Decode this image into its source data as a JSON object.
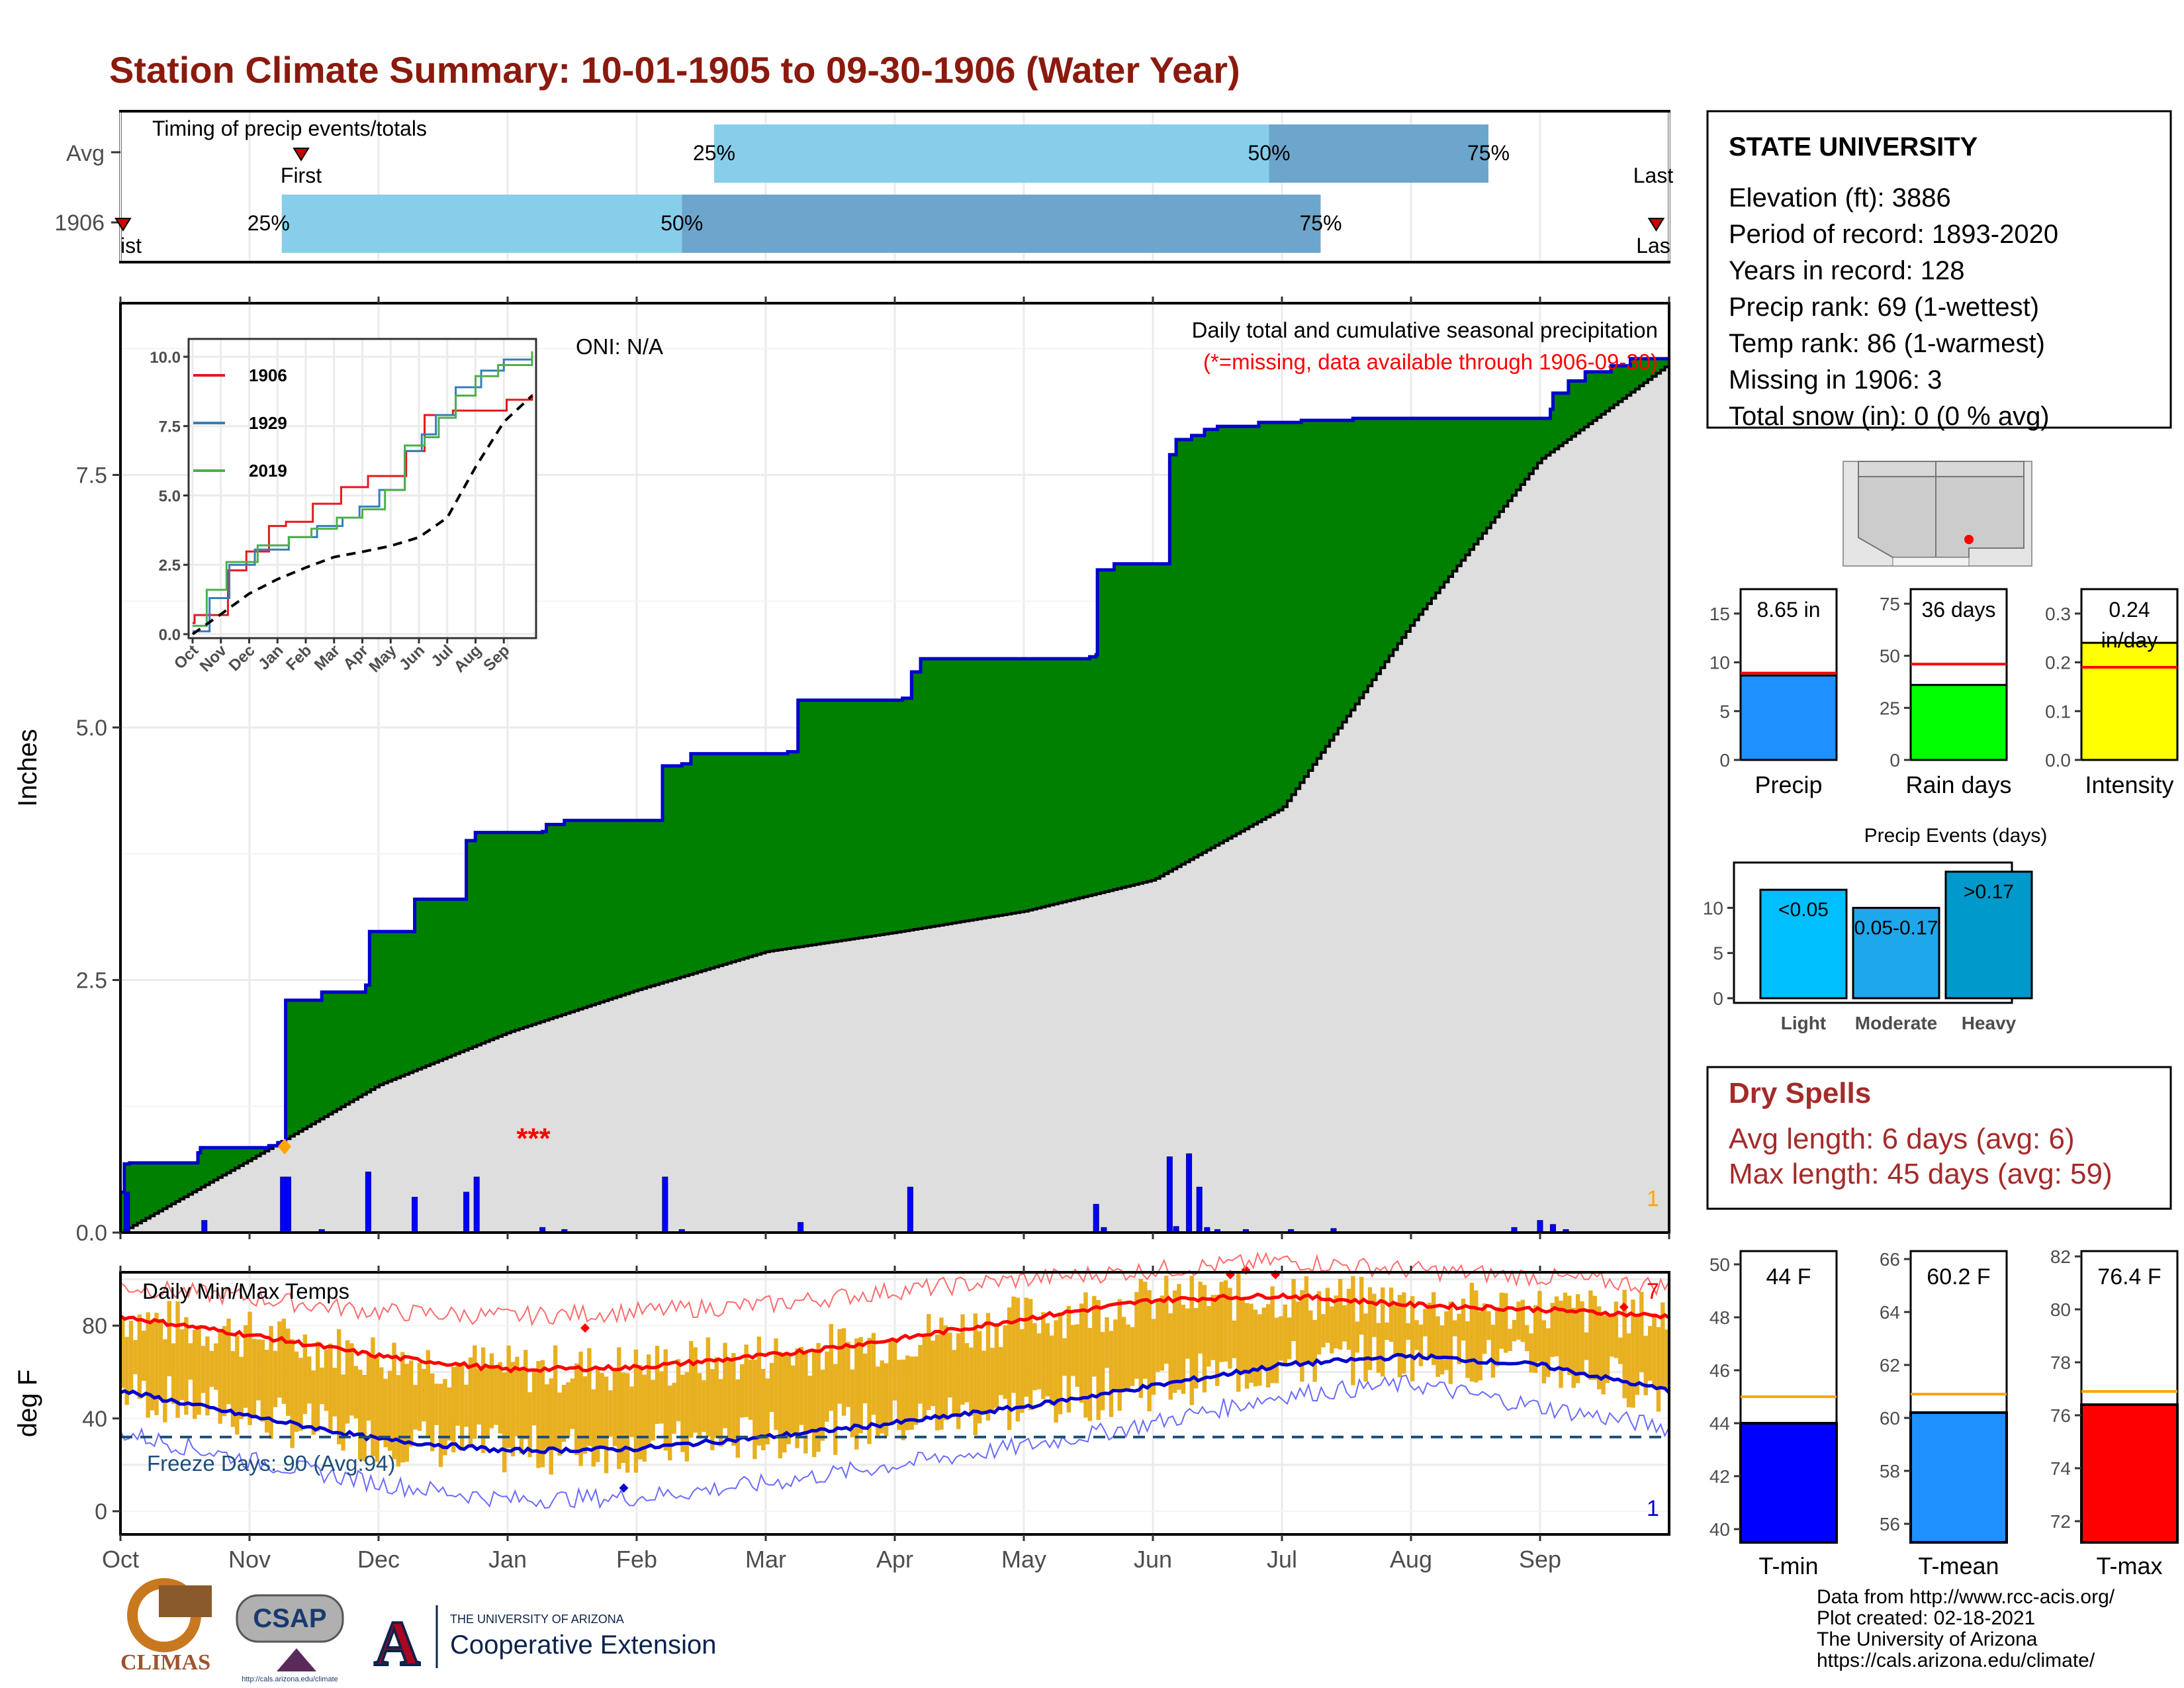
{
  "title": "Station Climate Summary: 10-01-1905 to 09-30-1906 (Water Year)",
  "colors": {
    "title": "#8b1a0e",
    "precip_green": "#008000",
    "precip_outline": "#0000cd",
    "avg_gray": "#dedede",
    "bar_light_blue": "#87ceeb",
    "bar_mid_blue": "#6ca6cd",
    "temp_band": "#e8b020",
    "tmax_line": "#ff0000",
    "tmin_line": "#0000cd",
    "dry_spells": "#a52a2a"
  },
  "timing": {
    "label": "Timing of precip events/totals",
    "rows": [
      {
        "name": "Avg",
        "first": "First",
        "last": "Last",
        "p25": "25%",
        "p50": "50%",
        "p75": "75%",
        "first_month": 1.4,
        "p25_month": 4.6,
        "p50_month": 8.9,
        "p75_month": 10.6,
        "last_month": 12.4
      },
      {
        "name": "1906",
        "first": "ist",
        "last": "Las",
        "p25": "25%",
        "p50": "50%",
        "p75": "75%",
        "first_month": 0.02,
        "p25_month": 1.25,
        "p50_month": 4.35,
        "p75_month": 9.3,
        "last_month": 11.9
      }
    ]
  },
  "precip": {
    "ylabel": "Inches",
    "title": "Daily total and cumulative seasonal precipitation",
    "subtitle": "(*=missing, data available through 1906-09-30)",
    "oni": "ONI: N/A",
    "yticks": [
      "0.0",
      "2.5",
      "5.0",
      "7.5"
    ],
    "corner_label": "1",
    "missing_marker": "*"
  },
  "inset": {
    "yticks": [
      "0.0",
      "2.5",
      "5.0",
      "7.5",
      "10.0"
    ],
    "xticks": [
      "Oct",
      "Nov",
      "Dec",
      "Jan",
      "Feb",
      "Mar",
      "Apr",
      "May",
      "Jun",
      "Jul",
      "Aug",
      "Sep"
    ],
    "legend": [
      {
        "name": "1906",
        "color": "#e41a1c"
      },
      {
        "name": "1929",
        "color": "#377eb8"
      },
      {
        "name": "2019",
        "color": "#4daf4a"
      }
    ]
  },
  "temps": {
    "ylabel": "deg F",
    "label": "Daily Min/Max Temps",
    "freeze_days": "Freeze Days: 90 (Avg:94)",
    "yticks": [
      "0",
      "40",
      "80"
    ],
    "corner_top": "7",
    "corner_bottom": "1"
  },
  "months": [
    "Oct",
    "Nov",
    "Dec",
    "Jan",
    "Feb",
    "Mar",
    "Apr",
    "May",
    "Jun",
    "Jul",
    "Aug",
    "Sep"
  ],
  "station": {
    "name": "STATE UNIVERSITY",
    "lines": [
      "Elevation (ft): 3886",
      "Period of record: 1893-2020",
      "Years in record: 128",
      "Precip rank: 69 (1-wettest)",
      "Temp rank: 86 (1-warmest)",
      "Missing in 1906: 3",
      "Total snow (in): 0 (0 % avg)"
    ]
  },
  "mini_bars": [
    {
      "label": "Precip",
      "value_text": "8.65 in",
      "value": 8.65,
      "avg": 8.9,
      "max": 17.5,
      "ticks": [
        "0",
        "5",
        "10",
        "15"
      ],
      "tick_vals": [
        0,
        5,
        10,
        15
      ],
      "color": "#1e90ff"
    },
    {
      "label": "Rain days",
      "value_text": "36 days",
      "value": 36,
      "avg": 46,
      "max": 82,
      "ticks": [
        "0",
        "25",
        "50",
        "75"
      ],
      "tick_vals": [
        0,
        25,
        50,
        75
      ],
      "color": "#00ff00"
    },
    {
      "label": "Intensity",
      "value_text": "0.24 in/day",
      "value": 0.24,
      "avg": 0.19,
      "max": 0.35,
      "ticks": [
        "0.0",
        "0.1",
        "0.2",
        "0.3"
      ],
      "tick_vals": [
        0,
        0.1,
        0.2,
        0.3
      ],
      "color": "#ffff00"
    }
  ],
  "events": {
    "title": "Precip Events (days)",
    "yticks": [
      "0",
      "5",
      "10"
    ],
    "bars": [
      {
        "label": "Light",
        "inner": "<0.05",
        "value": 12,
        "color": "#00bfff"
      },
      {
        "label": "Moderate",
        "inner": "0.05-0.17",
        "value": 10,
        "color": "#1ea7ea"
      },
      {
        "label": "Heavy",
        "inner": ">0.17",
        "value": 14,
        "color": "#0099cc"
      }
    ],
    "max": 14.5
  },
  "dry_spells": {
    "title": "Dry Spells",
    "avg": "Avg length: 6 days (avg: 6)",
    "max": "Max length: 45 days (avg: 59)"
  },
  "temp_bars": [
    {
      "label": "T-min",
      "value_text": "44 F",
      "value": 44.0,
      "avg": 45.0,
      "lo": 39.5,
      "hi": 50.5,
      "ticks": [
        "40",
        "42",
        "44",
        "46",
        "48",
        "50"
      ],
      "tick_vals": [
        40,
        42,
        44,
        46,
        48,
        50
      ],
      "color": "#0000ff"
    },
    {
      "label": "T-mean",
      "value_text": "60.2 F",
      "value": 60.2,
      "avg": 60.9,
      "lo": 55.3,
      "hi": 66.3,
      "ticks": [
        "56",
        "58",
        "60",
        "62",
        "64",
        "66"
      ],
      "tick_vals": [
        56,
        58,
        60,
        62,
        64,
        66
      ],
      "color": "#1e90ff"
    },
    {
      "label": "T-max",
      "value_text": "76.4 F",
      "value": 76.4,
      "avg": 76.9,
      "lo": 71.2,
      "hi": 82.2,
      "ticks": [
        "72",
        "74",
        "76",
        "78",
        "80",
        "82"
      ],
      "tick_vals": [
        72,
        74,
        76,
        78,
        80,
        82
      ],
      "color": "#ff0000"
    }
  ],
  "footer": [
    "Data from http://www.rcc-acis.org/",
    "Plot created: 02-18-2021",
    "The University of Arizona",
    "https://cals.arizona.edu/climate/"
  ],
  "logos": {
    "climas": "CLIMAS",
    "csap": "CSAP",
    "csap_url": "http://cals.arizona.edu/climate",
    "ua_small": "THE UNIVERSITY OF ARIZONA",
    "ua_ext": "Cooperative Extension"
  },
  "chart_data": [
    {
      "type": "area",
      "title": "Daily total and cumulative seasonal precipitation",
      "ylabel": "Inches",
      "ylim": [
        0,
        9.2
      ],
      "x_unit": "month index from Oct 1 (0-12)",
      "observed_cumulative": {
        "x": [
          0,
          0.03,
          0.07,
          0.6,
          0.62,
          1.15,
          1.22,
          1.28,
          1.56,
          1.9,
          1.93,
          2.28,
          2.68,
          2.75,
          3.27,
          3.3,
          3.44,
          4.2,
          4.35,
          4.42,
          5.17,
          5.25,
          6.06,
          6.13,
          6.2,
          7.51,
          7.56,
          7.57,
          7.7,
          8.13,
          8.18,
          8.3,
          8.4,
          8.5,
          8.82,
          9.15,
          9.55,
          11.08,
          11.1,
          11.22,
          11.35,
          11.55,
          11.7,
          12
        ],
        "y": [
          0.4,
          0.68,
          0.69,
          0.79,
          0.84,
          0.86,
          0.89,
          2.3,
          2.38,
          2.45,
          2.98,
          3.3,
          3.88,
          3.96,
          3.97,
          4.04,
          4.08,
          4.62,
          4.64,
          4.74,
          4.76,
          5.27,
          5.29,
          5.55,
          5.68,
          5.7,
          5.72,
          6.56,
          6.62,
          7.7,
          7.85,
          7.89,
          7.95,
          7.98,
          8.02,
          8.04,
          8.06,
          8.15,
          8.31,
          8.43,
          8.52,
          8.58,
          8.65,
          8.65
        ]
      },
      "average_cumulative": {
        "x": [
          0,
          1,
          2,
          3,
          4,
          5,
          6,
          7,
          8,
          9,
          10,
          11,
          12
        ],
        "y": [
          0,
          0.72,
          1.46,
          1.98,
          2.4,
          2.78,
          2.97,
          3.18,
          3.49,
          4.2,
          6.02,
          7.65,
          8.6
        ]
      },
      "daily_bars": {
        "x": [
          0.05,
          0.65,
          1.26,
          1.3,
          1.56,
          1.92,
          2.28,
          2.68,
          2.76,
          3.27,
          3.44,
          4.22,
          4.35,
          5.27,
          6.12,
          7.56,
          7.62,
          8.13,
          8.18,
          8.28,
          8.36,
          8.42,
          8.5,
          8.72,
          9.07,
          9.4,
          10.8,
          11.0,
          11.1,
          11.2
        ],
        "y": [
          0.4,
          0.12,
          0.55,
          0.55,
          0.03,
          0.6,
          0.35,
          0.4,
          0.55,
          0.05,
          0.03,
          0.55,
          0.03,
          0.1,
          0.45,
          0.28,
          0.05,
          0.75,
          0.06,
          0.78,
          0.45,
          0.05,
          0.03,
          0.03,
          0.03,
          0.04,
          0.05,
          0.12,
          0.08,
          0.03
        ]
      },
      "missing": [
        {
          "x": 3.2,
          "y": 0.98
        }
      ]
    },
    {
      "type": "line",
      "title": "",
      "ylim": [
        0,
        10.5
      ],
      "xlabels": [
        "Oct",
        "Nov",
        "Dec",
        "Jan",
        "Feb",
        "Mar",
        "Apr",
        "May",
        "Jun",
        "Jul",
        "Aug",
        "Sep"
      ],
      "series": [
        {
          "name": "1906",
          "x": [
            0,
            0.07,
            1.25,
            1.9,
            2.7,
            3.3,
            4.25,
            5.25,
            6.2,
            7.55,
            8.2,
            9.2,
            11.1,
            12
          ],
          "y": [
            0.4,
            0.69,
            2.3,
            2.98,
            3.9,
            4.05,
            4.7,
            5.3,
            5.7,
            6.6,
            7.9,
            8.06,
            8.45,
            8.65
          ]
        },
        {
          "name": "1929",
          "x": [
            0,
            0.6,
            1.3,
            2.2,
            3.4,
            4.4,
            5.3,
            5.9,
            6.6,
            7.5,
            8.1,
            8.6,
            9.3,
            10.2,
            11,
            12
          ],
          "y": [
            0.1,
            1.3,
            2.5,
            3.05,
            3.5,
            3.9,
            4.2,
            4.6,
            5.2,
            6.6,
            7.2,
            7.9,
            8.9,
            9.5,
            9.9,
            10.0
          ]
        },
        {
          "name": "2019",
          "x": [
            0,
            0.5,
            1.2,
            2.3,
            3.4,
            4.2,
            5.1,
            6,
            6.8,
            7.5,
            8.2,
            8.7,
            9.3,
            10,
            10.8,
            12
          ],
          "y": [
            0.3,
            1.6,
            2.6,
            3.2,
            3.5,
            3.8,
            4.2,
            4.5,
            5.2,
            6.8,
            7.1,
            7.8,
            8.6,
            9.3,
            9.7,
            10.2
          ]
        },
        {
          "name": "Average",
          "x": [
            0,
            1,
            2,
            3,
            4,
            5,
            6,
            7,
            8,
            9,
            10,
            11,
            12
          ],
          "y": [
            0,
            0.72,
            1.46,
            1.98,
            2.4,
            2.78,
            2.97,
            3.18,
            3.49,
            4.2,
            6.02,
            7.65,
            8.6
          ]
        }
      ]
    },
    {
      "type": "line",
      "title": "Daily Min/Max Temps",
      "ylabel": "deg F",
      "ylim": [
        -10,
        103
      ],
      "series": [
        {
          "name": "Avg Tmax",
          "x": [
            0,
            1,
            2,
            3,
            4,
            5,
            6,
            7,
            8,
            9,
            10,
            11,
            12
          ],
          "y": [
            84,
            76,
            67,
            61,
            62,
            67,
            74,
            83,
            91,
            93,
            89,
            87,
            84
          ]
        },
        {
          "name": "Avg Tmin",
          "x": [
            0,
            1,
            2,
            3,
            4,
            5,
            6,
            7,
            8,
            9,
            10,
            11,
            12
          ],
          "y": [
            52,
            41,
            31,
            26,
            27,
            32,
            38,
            45,
            54,
            63,
            67,
            63,
            52
          ]
        },
        {
          "name": "Record Tmax",
          "x": [
            0,
            1,
            2,
            3,
            4,
            5,
            6,
            7,
            8,
            9,
            10,
            11,
            12
          ],
          "y": [
            97,
            92,
            86,
            84,
            86,
            89,
            95,
            100,
            104,
            108,
            104,
            101,
            97
          ]
        },
        {
          "name": "Record Tmin",
          "x": [
            0,
            1,
            2,
            3,
            4,
            5,
            6,
            7,
            8,
            9,
            10,
            11,
            12
          ],
          "y": [
            34,
            22,
            12,
            5,
            6,
            12,
            20,
            28,
            38,
            50,
            55,
            45,
            36
          ]
        }
      ],
      "freeze_line": 32
    }
  ]
}
